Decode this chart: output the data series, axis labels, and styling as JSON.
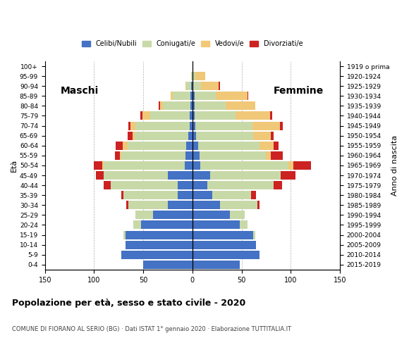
{
  "age_groups": [
    "0-4",
    "5-9",
    "10-14",
    "15-19",
    "20-24",
    "25-29",
    "30-34",
    "35-39",
    "40-44",
    "45-49",
    "50-54",
    "55-59",
    "60-64",
    "65-69",
    "70-74",
    "75-79",
    "80-84",
    "85-89",
    "90-94",
    "95-99",
    "100+"
  ],
  "birth_years": [
    "2015-2019",
    "2010-2014",
    "2005-2009",
    "2000-2004",
    "1995-1999",
    "1990-1994",
    "1985-1989",
    "1980-1984",
    "1975-1979",
    "1970-1974",
    "1965-1969",
    "1960-1964",
    "1955-1959",
    "1950-1954",
    "1945-1949",
    "1940-1944",
    "1935-1939",
    "1930-1934",
    "1925-1929",
    "1920-1924",
    "1919 o prima"
  ],
  "male": {
    "celibe": [
      50,
      72,
      68,
      68,
      52,
      40,
      25,
      15,
      15,
      25,
      8,
      7,
      6,
      4,
      3,
      3,
      2,
      2,
      1,
      0,
      0
    ],
    "coniugato": [
      0,
      0,
      0,
      2,
      8,
      18,
      40,
      55,
      68,
      65,
      82,
      65,
      60,
      55,
      55,
      40,
      28,
      18,
      5,
      1,
      0
    ],
    "vedovo": [
      0,
      0,
      0,
      0,
      0,
      0,
      0,
      0,
      0,
      0,
      2,
      2,
      5,
      2,
      5,
      8,
      3,
      2,
      1,
      0,
      0
    ],
    "divorziato": [
      0,
      0,
      0,
      0,
      0,
      0,
      2,
      2,
      7,
      8,
      8,
      5,
      7,
      5,
      2,
      2,
      1,
      0,
      0,
      0,
      0
    ]
  },
  "female": {
    "celibe": [
      48,
      68,
      65,
      62,
      48,
      38,
      28,
      20,
      15,
      18,
      8,
      7,
      6,
      4,
      3,
      2,
      2,
      2,
      1,
      0,
      0
    ],
    "coniugato": [
      0,
      0,
      0,
      2,
      8,
      15,
      38,
      40,
      68,
      72,
      90,
      68,
      62,
      58,
      58,
      42,
      32,
      22,
      8,
      3,
      0
    ],
    "vedovo": [
      0,
      0,
      0,
      0,
      0,
      0,
      0,
      0,
      0,
      0,
      5,
      5,
      15,
      18,
      28,
      35,
      30,
      32,
      18,
      10,
      1
    ],
    "divorziato": [
      0,
      0,
      0,
      0,
      0,
      0,
      2,
      5,
      8,
      15,
      18,
      12,
      5,
      3,
      3,
      2,
      0,
      1,
      1,
      0,
      0
    ]
  },
  "colors": {
    "celibe": "#4472C4",
    "coniugato": "#c8d9a8",
    "vedovo": "#f0c878",
    "divorziato": "#cc2222"
  },
  "title": "Popolazione per età, sesso e stato civile - 2020",
  "subtitle": "COMUNE DI FIORANO AL SERIO (BG) · Dati ISTAT 1° gennaio 2020 · Elaborazione TUTTITALIA.IT",
  "xlabel_left": "Maschi",
  "xlabel_right": "Femmine",
  "ylabel_left": "Età",
  "ylabel_right": "Anno di nascita",
  "xlim": 150,
  "legend_labels": [
    "Celibi/Nubili",
    "Coniugati/e",
    "Vedovi/e",
    "Divorziati/e"
  ],
  "bg_color": "#ffffff",
  "bar_height": 0.85
}
